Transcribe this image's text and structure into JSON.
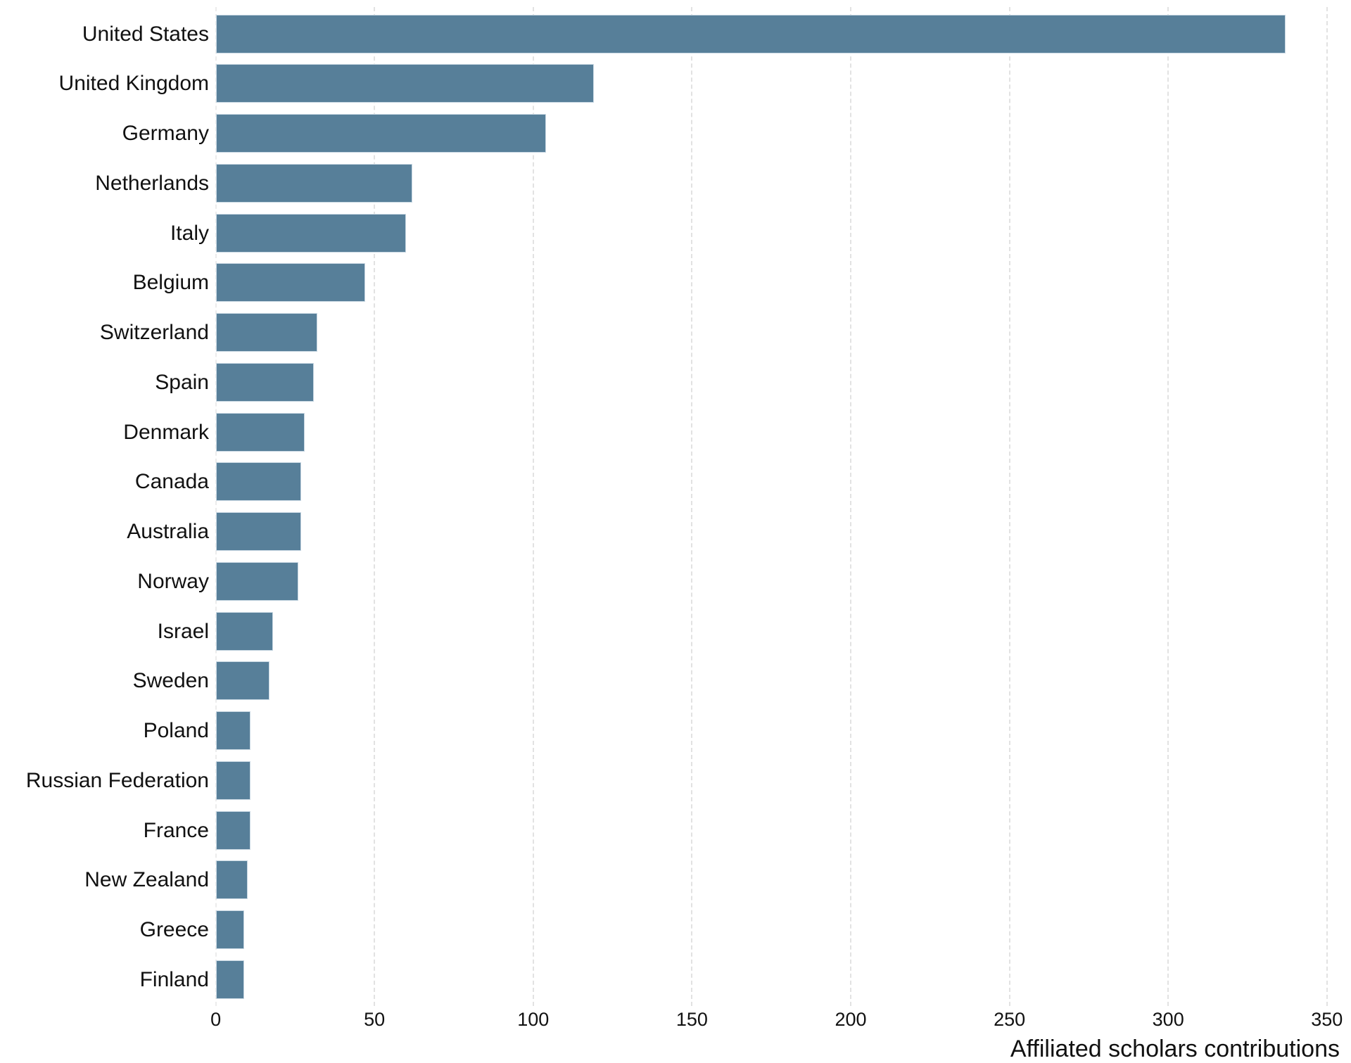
{
  "chart_data": {
    "type": "bar",
    "orientation": "horizontal",
    "title": "",
    "xlabel": "Affiliated scholars contributions",
    "ylabel": "",
    "xlim": [
      0,
      350
    ],
    "xticks": [
      0,
      50,
      100,
      150,
      200,
      250,
      300,
      350
    ],
    "grid": "vertical dashed",
    "legend": null,
    "bar_color": "#577f99",
    "categories": [
      "United States",
      "United Kingdom",
      "Germany",
      "Netherlands",
      "Italy",
      "Belgium",
      "Switzerland",
      "Spain",
      "Denmark",
      "Canada",
      "Australia",
      "Norway",
      "Israel",
      "Sweden",
      "Poland",
      "Russian Federation",
      "France",
      "New Zealand",
      "Greece",
      "Finland"
    ],
    "values": [
      337,
      119,
      104,
      62,
      60,
      47,
      32,
      31,
      28,
      27,
      27,
      26,
      18,
      17,
      11,
      11,
      11,
      10,
      9,
      9
    ]
  },
  "axis": {
    "x_title": "Affiliated scholars contributions",
    "ticks": [
      "0",
      "50",
      "100",
      "150",
      "200",
      "250",
      "300",
      "350"
    ]
  }
}
